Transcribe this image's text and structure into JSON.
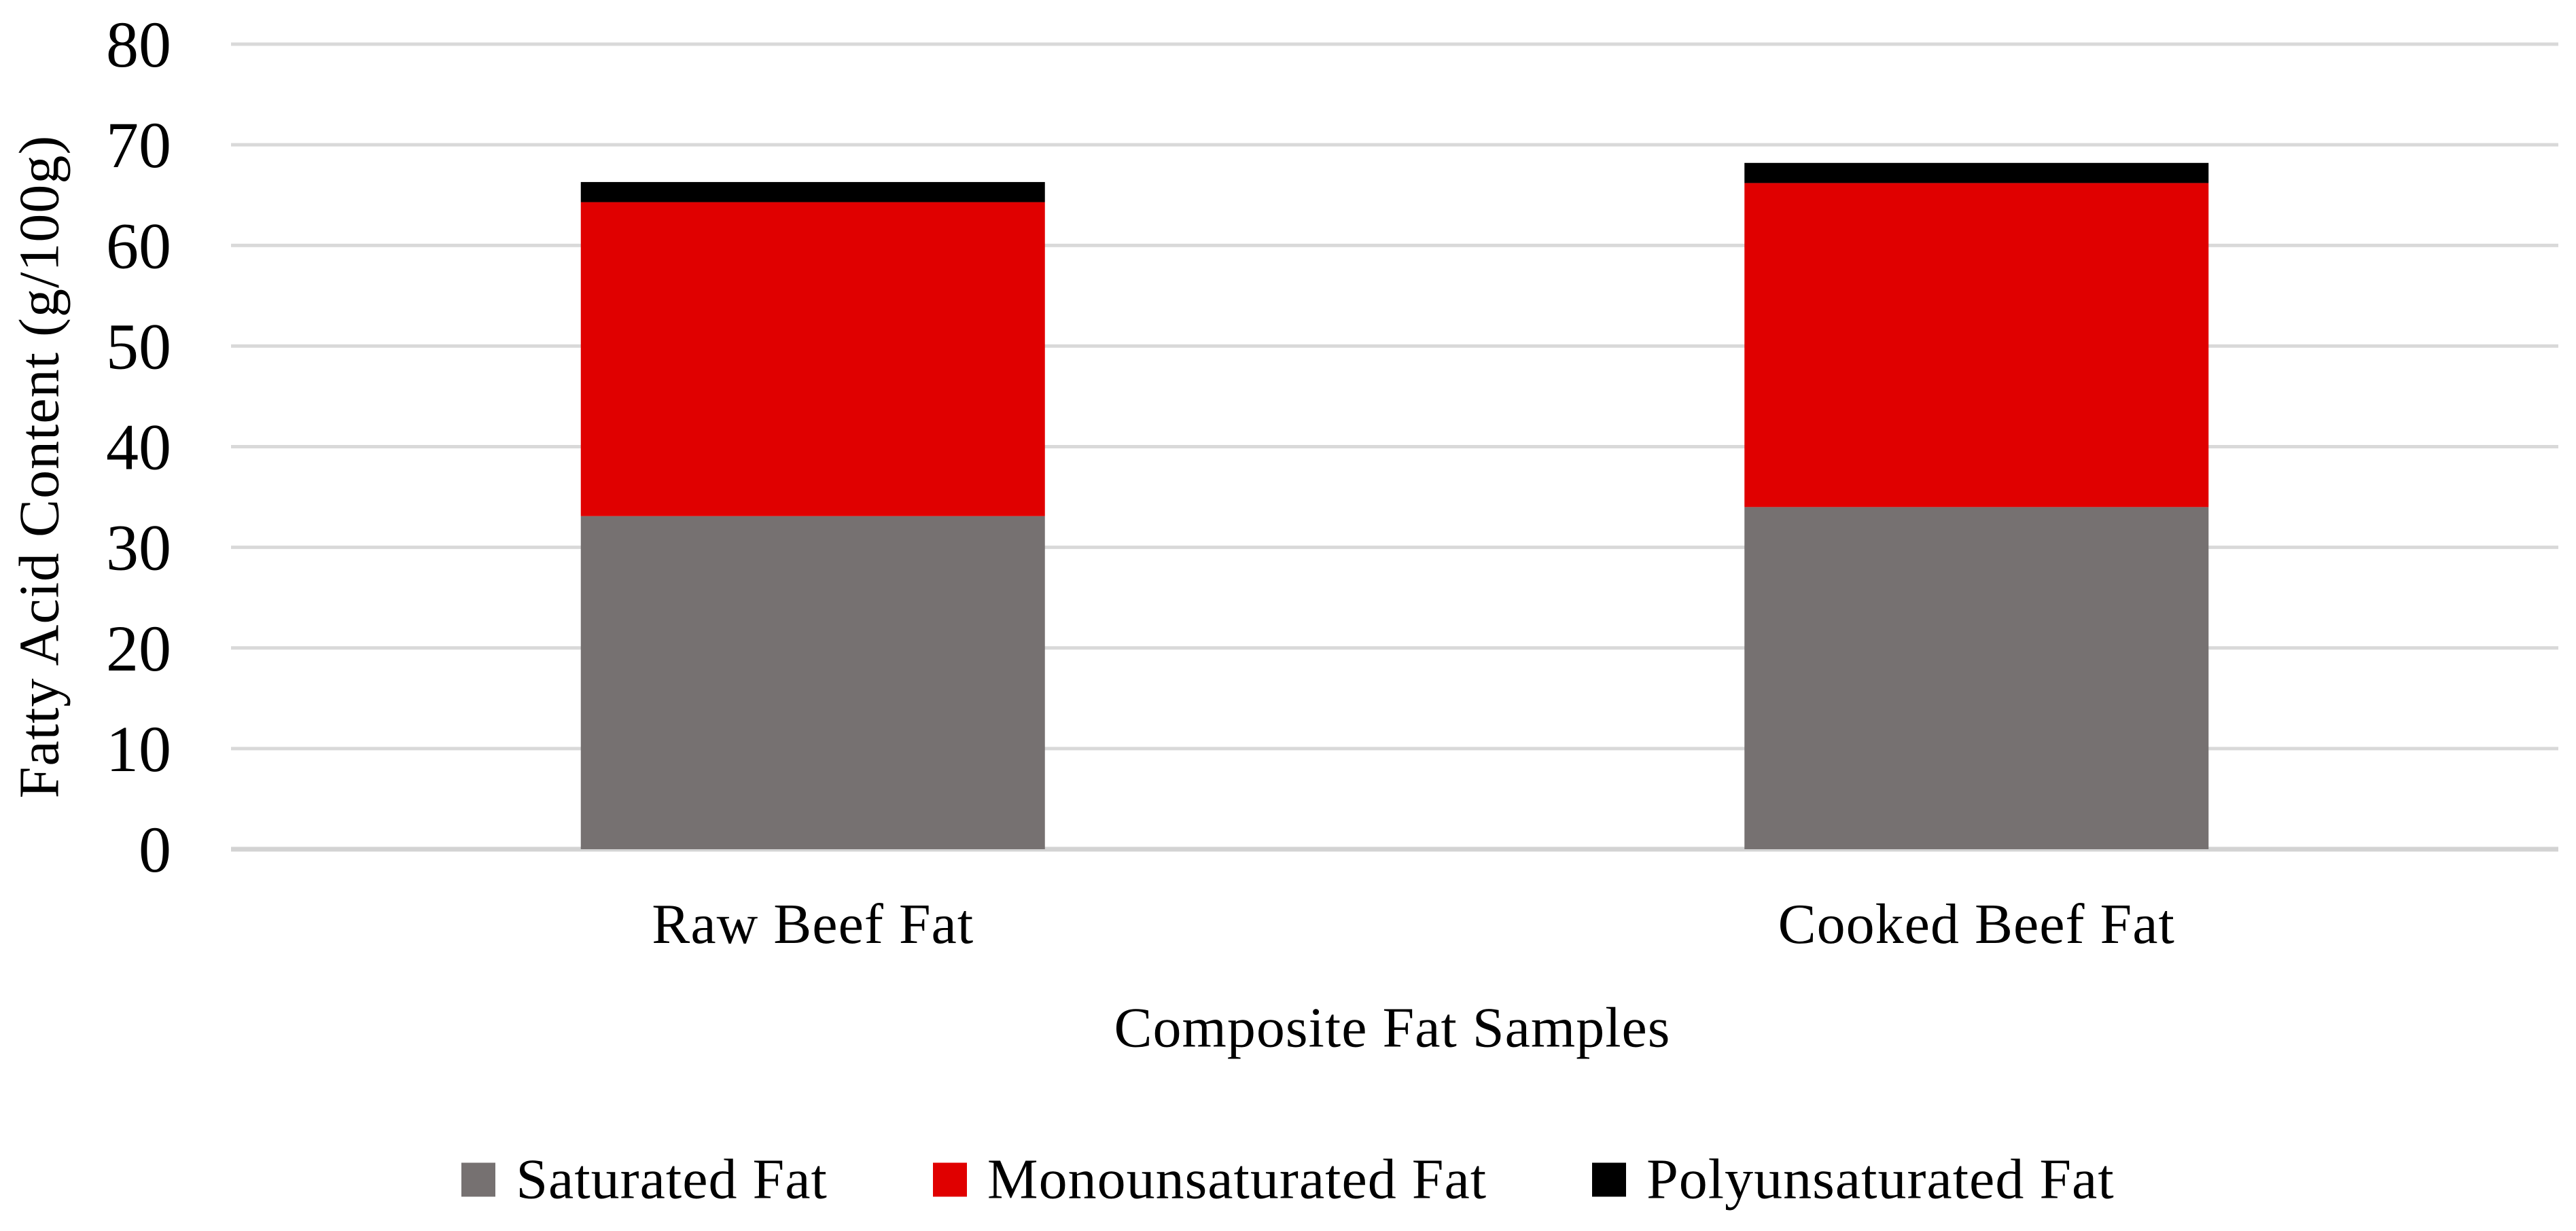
{
  "chart_data": {
    "type": "bar",
    "stacked": true,
    "title": "",
    "xlabel": "Composite Fat Samples",
    "ylabel": "Fatty Acid Content (g/100g)",
    "categories": [
      "Raw Beef Fat",
      "Cooked Beef Fat"
    ],
    "series": [
      {
        "name": "Saturated Fat",
        "color": "#767171",
        "values": [
          33.1,
          34.0
        ]
      },
      {
        "name": "Monounsaturated Fat",
        "color": "#E00000",
        "values": [
          31.2,
          32.2
        ]
      },
      {
        "name": "Polyunsaturated Fat",
        "color": "#000000",
        "values": [
          2.0,
          2.0
        ]
      }
    ],
    "totals": [
      66.3,
      68.2
    ],
    "ylim": [
      0,
      80
    ],
    "yticks": [
      0,
      10,
      20,
      30,
      40,
      50,
      60,
      70,
      80
    ],
    "grid": "horizontal",
    "gridline_color": "#D9D9D9",
    "axis_line_color": "#D3D3D3",
    "background": "#FFFFFF",
    "text_color": "#000000",
    "legend_position": "bottom"
  }
}
